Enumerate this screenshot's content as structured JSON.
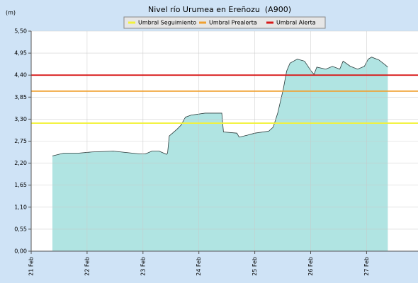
{
  "chart_data": {
    "type": "area",
    "title": "Nivel río Urumea en Ereñozu  (A900)",
    "y_label": "(m)",
    "x": [
      21.38,
      21.58,
      21.84,
      22.09,
      22.47,
      22.95,
      23.04,
      23.16,
      23.29,
      23.42,
      23.44,
      23.47,
      23.61,
      23.68,
      23.76,
      23.86,
      24.11,
      24.41,
      24.44,
      24.68,
      24.72,
      24.87,
      25.0,
      25.25,
      25.33,
      25.41,
      25.51,
      25.57,
      25.63,
      25.76,
      25.89,
      26.01,
      26.06,
      26.11,
      26.27,
      26.39,
      26.52,
      26.58,
      26.71,
      26.84,
      26.96,
      27.03,
      27.09,
      27.22,
      27.34,
      27.38
    ],
    "series": [
      {
        "color": "#b0e4e2",
        "values": [
          2.38,
          2.45,
          2.45,
          2.48,
          2.5,
          2.43,
          2.43,
          2.5,
          2.5,
          2.42,
          2.45,
          2.88,
          3.05,
          3.15,
          3.35,
          3.4,
          3.45,
          3.45,
          2.98,
          2.95,
          2.85,
          2.9,
          2.95,
          3.0,
          3.1,
          3.45,
          4.05,
          4.5,
          4.7,
          4.8,
          4.75,
          4.5,
          4.42,
          4.6,
          4.55,
          4.62,
          4.55,
          4.75,
          4.62,
          4.55,
          4.62,
          4.8,
          4.85,
          4.78,
          4.65,
          4.6
        ]
      }
    ],
    "thresholds": [
      {
        "name": "Umbral Seguimiento",
        "color": "#f2f23a",
        "value": 3.2
      },
      {
        "name": "Umbral Prealerta",
        "color": "#f0a030",
        "value": 4.0
      },
      {
        "name": "Umbral Alerta",
        "color": "#d81818",
        "value": 4.4
      }
    ],
    "xlim": [
      21,
      27.92
    ],
    "xticks": [
      {
        "value": 21,
        "label": "21 Feb"
      },
      {
        "value": 22,
        "label": "22 Feb"
      },
      {
        "value": 23,
        "label": "23 Feb"
      },
      {
        "value": 24,
        "label": "24 Feb"
      },
      {
        "value": 25,
        "label": "25 Feb"
      },
      {
        "value": 26,
        "label": "26 Feb"
      },
      {
        "value": 27,
        "label": "27 Feb"
      }
    ],
    "ylim": [
      0,
      5.5
    ],
    "yticks": [
      {
        "value": 0,
        "label": "0,00"
      },
      {
        "value": 0.55,
        "label": "0,55"
      },
      {
        "value": 1.1,
        "label": "1,10"
      },
      {
        "value": 1.65,
        "label": "1,65"
      },
      {
        "value": 2.2,
        "label": "2,20"
      },
      {
        "value": 2.75,
        "label": "2,75"
      },
      {
        "value": 3.3,
        "label": "3,30"
      },
      {
        "value": 3.85,
        "label": "3,85"
      },
      {
        "value": 4.4,
        "label": "4,40"
      },
      {
        "value": 4.95,
        "label": "4,95"
      },
      {
        "value": 5.5,
        "label": "5,50"
      }
    ],
    "grid": true
  }
}
